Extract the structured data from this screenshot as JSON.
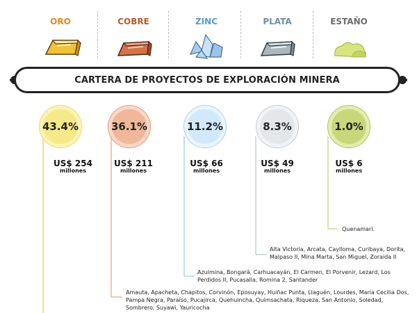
{
  "title": "CARTERA DE PROYECTOS DE EXPLORACIÓN MINERA",
  "minerals": [
    {
      "name": "ORO",
      "color": "#e08a1e",
      "light": "#f6e98a",
      "ring": "#f2d95a",
      "line": "#f0c35a",
      "percent": "43.4%",
      "amount": "US$ 254",
      "unit": "millones",
      "projects": ""
    },
    {
      "name": "COBRE",
      "color": "#b75a2a",
      "light": "#f0b79a",
      "ring": "#e59775",
      "line": "#e7a07a",
      "percent": "36.1%",
      "amount": "US$ 211",
      "unit": "millones",
      "projects": "Amauta, Apacheta, Chapitos, Corvinón, Eposuyay, Huiñac Punta, Llaguén, Lourdes, María Cecilia Dos, Pampa Negra, Paraíso, Pucajirca, Quehuincha, Quimsachata, Riqueza, San Antonio, Soledad, Sombrero, Suyawi, Yauricocha"
    },
    {
      "name": "ZINC",
      "color": "#4f8fc9",
      "light": "#d3e9fa",
      "ring": "#a9d1f1",
      "line": "#9ec9ec",
      "percent": "11.2%",
      "amount": "US$ 66",
      "unit": "millones",
      "projects": "Azulmina, Bongará, Carhuacayán, El Carmen, El Porvenir, Lezard, Los Perdidos II, Pucasalla, Romina 2, Santander"
    },
    {
      "name": "PLATA",
      "color": "#6d8fa3",
      "light": "#e3e7ea",
      "ring": "#c3ccd2",
      "line": "#b9c3c9",
      "percent": "8.3%",
      "amount": "US$ 49",
      "unit": "millones",
      "projects": "Alta Victoria, Arcata, Caylloma, Curibaya, Dorita, Malpaso II, Mina Marta, San Miguel, Zoraida II"
    },
    {
      "name": "ESTAÑO",
      "color": "#6b6b6b",
      "light": "#dfe8a9",
      "ring": "#bccb64",
      "line": "#c4d177",
      "percent": "1.0%",
      "amount": "US$ 6",
      "unit": "millones",
      "projects": "Quenamari."
    }
  ]
}
